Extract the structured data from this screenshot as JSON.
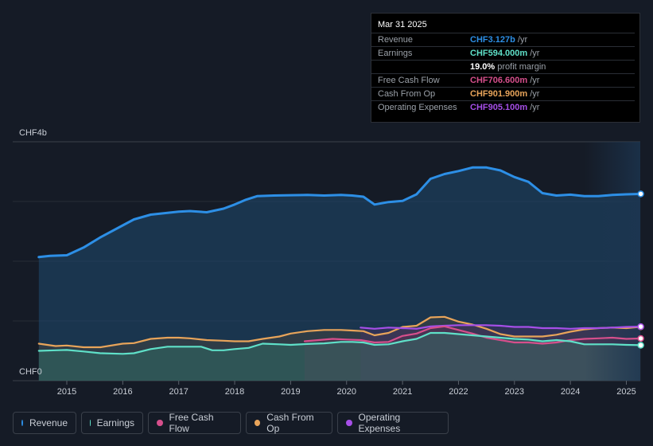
{
  "tooltip": {
    "date": "Mar 31 2025",
    "rows": [
      {
        "label": "Revenue",
        "value": "CHF3.127b",
        "unit": "/yr",
        "color": "#2d8fe6"
      },
      {
        "label": "Earnings",
        "value": "CHF594.000m",
        "unit": "/yr",
        "color": "#5fe0c8"
      },
      {
        "label": "",
        "value": "19.0%",
        "unit": "profit margin",
        "color": "#ffffff"
      },
      {
        "label": "Free Cash Flow",
        "value": "CHF706.600m",
        "unit": "/yr",
        "color": "#d64f8c"
      },
      {
        "label": "Cash From Op",
        "value": "CHF901.900m",
        "unit": "/yr",
        "color": "#e8a45a"
      },
      {
        "label": "Operating Expenses",
        "value": "CHF905.100m",
        "unit": "/yr",
        "color": "#a64fe8"
      }
    ]
  },
  "legend": [
    {
      "label": "Revenue",
      "color": "#2d8fe6"
    },
    {
      "label": "Earnings",
      "color": "#5fe0c8"
    },
    {
      "label": "Free Cash Flow",
      "color": "#d64f8c"
    },
    {
      "label": "Cash From Op",
      "color": "#e8a45a"
    },
    {
      "label": "Operating Expenses",
      "color": "#a64fe8"
    }
  ],
  "chart_data": {
    "type": "area",
    "y_labels": {
      "top": "CHF4b",
      "bottom": "CHF0"
    },
    "x_ticks": [
      "2015",
      "2016",
      "2017",
      "2018",
      "2019",
      "2020",
      "2021",
      "2022",
      "2023",
      "2024",
      "2025"
    ],
    "ylim": [
      0,
      4000
    ],
    "xlim": [
      2014.3,
      2025.3
    ],
    "series": [
      {
        "name": "Revenue",
        "color": "#2d8fe6",
        "x": [
          2014.5,
          2014.7,
          2015.0,
          2015.3,
          2015.6,
          2016.0,
          2016.2,
          2016.5,
          2016.8,
          2017.0,
          2017.2,
          2017.5,
          2017.8,
          2018.0,
          2018.2,
          2018.4,
          2018.7,
          2019.0,
          2019.3,
          2019.6,
          2019.9,
          2020.1,
          2020.3,
          2020.5,
          2020.75,
          2021.0,
          2021.25,
          2021.5,
          2021.75,
          2022.0,
          2022.25,
          2022.5,
          2022.75,
          2023.0,
          2023.25,
          2023.5,
          2023.75,
          2024.0,
          2024.25,
          2024.5,
          2024.75,
          2025.0,
          2025.25
        ],
        "values": [
          2070,
          2090,
          2100,
          2230,
          2400,
          2600,
          2700,
          2780,
          2810,
          2830,
          2840,
          2820,
          2880,
          2950,
          3030,
          3090,
          3100,
          3105,
          3110,
          3100,
          3110,
          3100,
          3080,
          2950,
          2990,
          3010,
          3120,
          3380,
          3460,
          3510,
          3570,
          3570,
          3520,
          3410,
          3330,
          3140,
          3100,
          3115,
          3090,
          3090,
          3110,
          3120,
          3127
        ]
      },
      {
        "name": "Earnings",
        "color": "#5fe0c8",
        "x": [
          2014.5,
          2014.8,
          2015.0,
          2015.3,
          2015.6,
          2016.0,
          2016.2,
          2016.5,
          2016.8,
          2017.0,
          2017.2,
          2017.4,
          2017.6,
          2017.8,
          2018.0,
          2018.25,
          2018.5,
          2018.8,
          2019.0,
          2019.3,
          2019.6,
          2019.9,
          2020.1,
          2020.3,
          2020.5,
          2020.75,
          2021.0,
          2021.25,
          2021.5,
          2021.75,
          2022.0,
          2022.25,
          2022.5,
          2022.75,
          2023.0,
          2023.25,
          2023.5,
          2023.75,
          2024.0,
          2024.25,
          2024.5,
          2024.75,
          2025.0,
          2025.25
        ],
        "values": [
          500,
          510,
          515,
          490,
          460,
          450,
          460,
          530,
          570,
          570,
          570,
          570,
          510,
          510,
          530,
          550,
          620,
          610,
          600,
          615,
          625,
          650,
          650,
          640,
          600,
          610,
          660,
          700,
          800,
          800,
          780,
          760,
          740,
          720,
          700,
          690,
          660,
          680,
          660,
          610,
          610,
          610,
          600,
          594
        ]
      },
      {
        "name": "Cash From Op",
        "color": "#e8a45a",
        "x": [
          2014.5,
          2014.8,
          2015.0,
          2015.3,
          2015.6,
          2016.0,
          2016.2,
          2016.5,
          2016.8,
          2017.0,
          2017.2,
          2017.5,
          2017.8,
          2018.0,
          2018.25,
          2018.5,
          2018.8,
          2019.0,
          2019.3,
          2019.6,
          2019.9,
          2020.1,
          2020.3,
          2020.5,
          2020.75,
          2021.0,
          2021.25,
          2021.5,
          2021.75,
          2022.0,
          2022.25,
          2022.5,
          2022.75,
          2023.0,
          2023.25,
          2023.5,
          2023.75,
          2024.0,
          2024.25,
          2024.5,
          2024.75,
          2025.0,
          2025.25
        ],
        "values": [
          620,
          580,
          590,
          560,
          560,
          620,
          630,
          700,
          720,
          720,
          710,
          680,
          670,
          660,
          660,
          700,
          740,
          790,
          830,
          850,
          850,
          840,
          830,
          760,
          800,
          900,
          920,
          1060,
          1070,
          990,
          940,
          870,
          780,
          740,
          740,
          740,
          770,
          820,
          860,
          880,
          890,
          880,
          902
        ]
      },
      {
        "name": "Free Cash Flow",
        "color": "#d64f8c",
        "x": [
          2019.25,
          2019.5,
          2019.75,
          2020.0,
          2020.25,
          2020.5,
          2020.75,
          2021.0,
          2021.25,
          2021.5,
          2021.75,
          2022.0,
          2022.25,
          2022.5,
          2022.75,
          2023.0,
          2023.25,
          2023.5,
          2023.75,
          2024.0,
          2024.25,
          2024.5,
          2024.75,
          2025.0,
          2025.25
        ],
        "values": [
          660,
          680,
          700,
          690,
          680,
          640,
          650,
          750,
          790,
          880,
          910,
          850,
          790,
          720,
          680,
          640,
          640,
          620,
          640,
          680,
          700,
          710,
          720,
          700,
          707
        ]
      },
      {
        "name": "Operating Expenses",
        "color": "#a64fe8",
        "x": [
          2020.25,
          2020.5,
          2020.75,
          2021.0,
          2021.25,
          2021.5,
          2021.75,
          2022.0,
          2022.25,
          2022.5,
          2022.75,
          2023.0,
          2023.25,
          2023.5,
          2023.75,
          2024.0,
          2024.25,
          2024.5,
          2024.75,
          2025.0,
          2025.25
        ],
        "values": [
          890,
          870,
          890,
          880,
          870,
          910,
          920,
          930,
          930,
          930,
          920,
          900,
          900,
          880,
          880,
          870,
          880,
          880,
          890,
          900,
          905
        ]
      }
    ]
  }
}
